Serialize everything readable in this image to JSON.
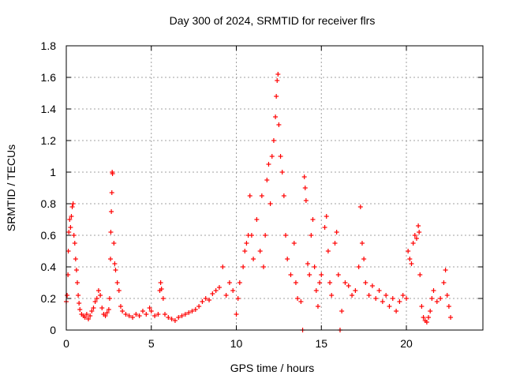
{
  "chart_data": {
    "type": "scatter",
    "title": "Day 300 of 2024, SRMTID for receiver flrs",
    "xlabel": "GPS time / hours",
    "ylabel": "SRMTID / TECUs",
    "xlim": [
      0,
      24.5
    ],
    "ylim": [
      0,
      1.8
    ],
    "x_ticks": [
      0,
      5,
      10,
      15,
      20
    ],
    "y_ticks": [
      0,
      0.2,
      0.4,
      0.6,
      0.8,
      1,
      1.2,
      1.4,
      1.6,
      1.8
    ],
    "x_tick_labels": [
      "0",
      "5",
      "10",
      "15",
      "20"
    ],
    "y_tick_labels": [
      "0",
      "0.2",
      "0.4",
      "0.6",
      "0.8",
      "1",
      "1.2",
      "1.4",
      "1.6",
      "1.8"
    ],
    "grid": true,
    "marker": "+",
    "series": [
      {
        "name": "SRMTID",
        "color": "#ff0000",
        "points": [
          [
            0.0,
            0.18
          ],
          [
            0.05,
            0.22
          ],
          [
            0.1,
            0.35
          ],
          [
            0.12,
            0.5
          ],
          [
            0.15,
            0.62
          ],
          [
            0.2,
            0.7
          ],
          [
            0.25,
            0.65
          ],
          [
            0.3,
            0.72
          ],
          [
            0.35,
            0.78
          ],
          [
            0.4,
            0.8
          ],
          [
            0.45,
            0.6
          ],
          [
            0.5,
            0.55
          ],
          [
            0.55,
            0.45
          ],
          [
            0.6,
            0.38
          ],
          [
            0.65,
            0.3
          ],
          [
            0.7,
            0.22
          ],
          [
            0.75,
            0.17
          ],
          [
            0.8,
            0.13
          ],
          [
            0.9,
            0.1
          ],
          [
            1.0,
            0.09
          ],
          [
            1.1,
            0.08
          ],
          [
            1.2,
            0.1
          ],
          [
            1.3,
            0.07
          ],
          [
            1.4,
            0.09
          ],
          [
            1.5,
            0.12
          ],
          [
            1.6,
            0.14
          ],
          [
            1.7,
            0.18
          ],
          [
            1.8,
            0.2
          ],
          [
            1.9,
            0.25
          ],
          [
            2.0,
            0.22
          ],
          [
            2.1,
            0.14
          ],
          [
            2.2,
            0.1
          ],
          [
            2.3,
            0.09
          ],
          [
            2.4,
            0.11
          ],
          [
            2.5,
            0.13
          ],
          [
            2.55,
            0.2
          ],
          [
            2.6,
            0.45
          ],
          [
            2.62,
            0.62
          ],
          [
            2.65,
            0.75
          ],
          [
            2.68,
            0.87
          ],
          [
            2.7,
            1.0
          ],
          [
            2.72,
            0.99
          ],
          [
            2.8,
            0.55
          ],
          [
            2.85,
            0.42
          ],
          [
            2.9,
            0.38
          ],
          [
            3.0,
            0.3
          ],
          [
            3.1,
            0.25
          ],
          [
            3.2,
            0.15
          ],
          [
            3.3,
            0.12
          ],
          [
            3.5,
            0.1
          ],
          [
            3.7,
            0.09
          ],
          [
            3.9,
            0.08
          ],
          [
            4.1,
            0.1
          ],
          [
            4.3,
            0.09
          ],
          [
            4.5,
            0.12
          ],
          [
            4.7,
            0.1
          ],
          [
            4.9,
            0.14
          ],
          [
            5.0,
            0.12
          ],
          [
            5.2,
            0.09
          ],
          [
            5.4,
            0.1
          ],
          [
            5.5,
            0.25
          ],
          [
            5.55,
            0.3
          ],
          [
            5.6,
            0.26
          ],
          [
            5.7,
            0.2
          ],
          [
            5.8,
            0.1
          ],
          [
            6.0,
            0.08
          ],
          [
            6.2,
            0.07
          ],
          [
            6.4,
            0.06
          ],
          [
            6.6,
            0.08
          ],
          [
            6.8,
            0.09
          ],
          [
            7.0,
            0.1
          ],
          [
            7.2,
            0.11
          ],
          [
            7.4,
            0.12
          ],
          [
            7.6,
            0.13
          ],
          [
            7.8,
            0.15
          ],
          [
            8.0,
            0.18
          ],
          [
            8.2,
            0.2
          ],
          [
            8.4,
            0.19
          ],
          [
            8.6,
            0.23
          ],
          [
            8.8,
            0.25
          ],
          [
            9.0,
            0.27
          ],
          [
            9.2,
            0.4
          ],
          [
            9.4,
            0.22
          ],
          [
            9.6,
            0.3
          ],
          [
            9.8,
            0.25
          ],
          [
            10.0,
            0.1
          ],
          [
            10.1,
            0.2
          ],
          [
            10.2,
            0.3
          ],
          [
            10.4,
            0.4
          ],
          [
            10.5,
            0.5
          ],
          [
            10.6,
            0.55
          ],
          [
            10.7,
            0.6
          ],
          [
            10.8,
            0.85
          ],
          [
            10.9,
            0.6
          ],
          [
            11.0,
            0.45
          ],
          [
            11.2,
            0.7
          ],
          [
            11.4,
            0.5
          ],
          [
            11.5,
            0.85
          ],
          [
            11.6,
            0.4
          ],
          [
            11.7,
            0.6
          ],
          [
            11.8,
            0.95
          ],
          [
            11.9,
            1.05
          ],
          [
            12.0,
            0.8
          ],
          [
            12.1,
            1.1
          ],
          [
            12.2,
            1.2
          ],
          [
            12.3,
            1.35
          ],
          [
            12.35,
            1.48
          ],
          [
            12.4,
            1.58
          ],
          [
            12.45,
            1.62
          ],
          [
            12.5,
            1.3
          ],
          [
            12.6,
            1.1
          ],
          [
            12.7,
            1.0
          ],
          [
            12.8,
            0.85
          ],
          [
            12.9,
            0.6
          ],
          [
            13.0,
            0.45
          ],
          [
            13.2,
            0.35
          ],
          [
            13.4,
            0.55
          ],
          [
            13.5,
            0.3
          ],
          [
            13.6,
            0.2
          ],
          [
            13.8,
            0.18
          ],
          [
            13.9,
            0.0
          ],
          [
            14.0,
            0.97
          ],
          [
            14.05,
            0.9
          ],
          [
            14.1,
            0.82
          ],
          [
            14.2,
            0.42
          ],
          [
            14.3,
            0.35
          ],
          [
            14.4,
            0.6
          ],
          [
            14.5,
            0.7
          ],
          [
            14.6,
            0.4
          ],
          [
            14.7,
            0.25
          ],
          [
            14.8,
            0.15
          ],
          [
            14.9,
            0.3
          ],
          [
            15.0,
            0.35
          ],
          [
            15.2,
            0.65
          ],
          [
            15.3,
            0.72
          ],
          [
            15.4,
            0.5
          ],
          [
            15.5,
            0.3
          ],
          [
            15.6,
            0.22
          ],
          [
            15.8,
            0.55
          ],
          [
            15.9,
            0.62
          ],
          [
            16.0,
            0.35
          ],
          [
            16.1,
            0.0
          ],
          [
            16.2,
            0.12
          ],
          [
            16.4,
            0.3
          ],
          [
            16.6,
            0.28
          ],
          [
            16.8,
            0.22
          ],
          [
            17.0,
            0.25
          ],
          [
            17.2,
            0.4
          ],
          [
            17.3,
            0.78
          ],
          [
            17.4,
            0.55
          ],
          [
            17.5,
            0.45
          ],
          [
            17.6,
            0.3
          ],
          [
            17.8,
            0.22
          ],
          [
            18.0,
            0.28
          ],
          [
            18.2,
            0.2
          ],
          [
            18.4,
            0.25
          ],
          [
            18.6,
            0.18
          ],
          [
            18.8,
            0.22
          ],
          [
            19.0,
            0.15
          ],
          [
            19.2,
            0.2
          ],
          [
            19.4,
            0.12
          ],
          [
            19.6,
            0.18
          ],
          [
            19.8,
            0.22
          ],
          [
            20.0,
            0.2
          ],
          [
            20.1,
            0.5
          ],
          [
            20.2,
            0.45
          ],
          [
            20.3,
            0.42
          ],
          [
            20.4,
            0.55
          ],
          [
            20.5,
            0.6
          ],
          [
            20.6,
            0.58
          ],
          [
            20.7,
            0.66
          ],
          [
            20.75,
            0.62
          ],
          [
            20.8,
            0.35
          ],
          [
            20.9,
            0.15
          ],
          [
            21.0,
            0.08
          ],
          [
            21.1,
            0.06
          ],
          [
            21.2,
            0.05
          ],
          [
            21.3,
            0.08
          ],
          [
            21.4,
            0.12
          ],
          [
            21.5,
            0.2
          ],
          [
            21.6,
            0.25
          ],
          [
            21.8,
            0.18
          ],
          [
            22.0,
            0.2
          ],
          [
            22.2,
            0.3
          ],
          [
            22.3,
            0.38
          ],
          [
            22.4,
            0.22
          ],
          [
            22.5,
            0.15
          ],
          [
            22.6,
            0.08
          ]
        ]
      }
    ]
  }
}
